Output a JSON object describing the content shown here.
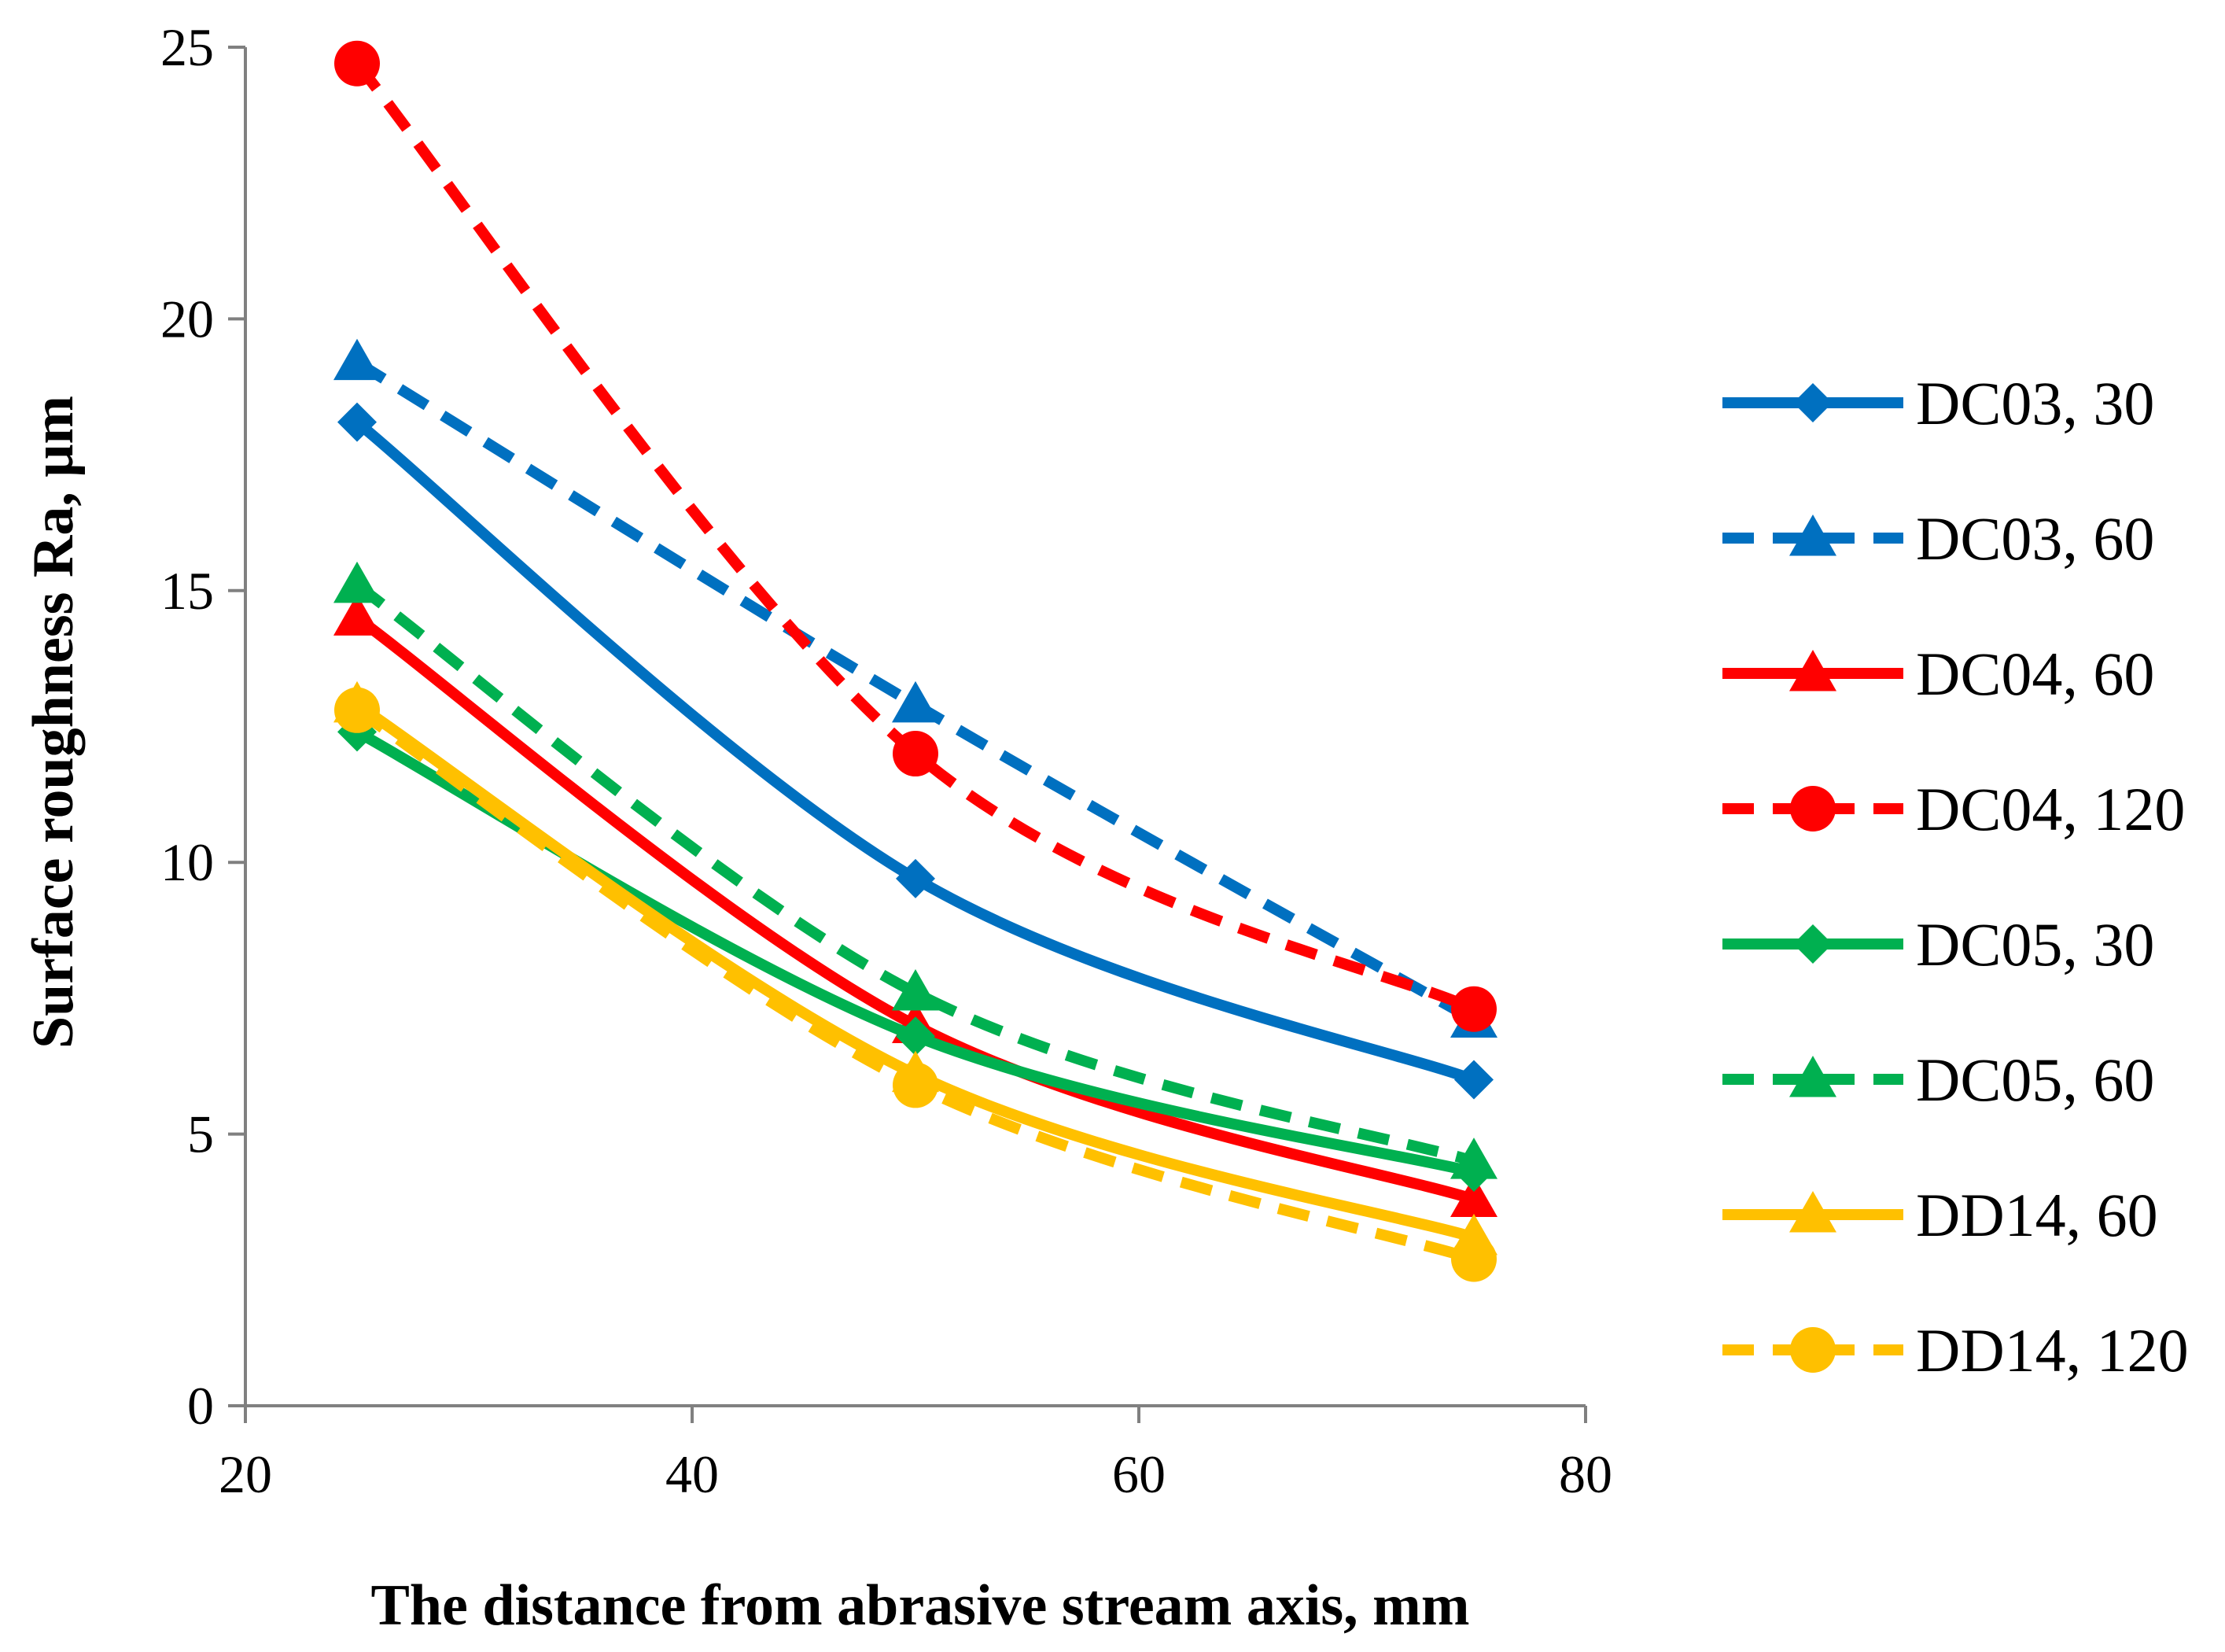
{
  "chart_data": {
    "type": "line",
    "title": "",
    "xlabel": "The distance from abrasive stream axis, mm",
    "ylabel": "Surface roughness Ra, μm",
    "xlim": [
      20,
      80
    ],
    "ylim": [
      0,
      25
    ],
    "x_ticks": [
      20,
      40,
      60,
      80
    ],
    "y_ticks": [
      0,
      5,
      10,
      15,
      20,
      25
    ],
    "grid": false,
    "legend_position": "right",
    "x": [
      25,
      50,
      75
    ],
    "series": [
      {
        "name": "DC03, 30",
        "values": [
          18.1,
          9.7,
          6.0
        ],
        "color": "#0070C0",
        "dash": "solid",
        "marker": "diamond"
      },
      {
        "name": "DC03, 60",
        "values": [
          19.2,
          12.9,
          7.1
        ],
        "color": "#0070C0",
        "dash": "dashed",
        "marker": "triangle"
      },
      {
        "name": "DC04, 60",
        "values": [
          14.5,
          7.0,
          3.8
        ],
        "color": "#FF0000",
        "dash": "solid",
        "marker": "triangle"
      },
      {
        "name": "DC04, 120",
        "values": [
          24.7,
          12.0,
          7.3
        ],
        "color": "#FF0000",
        "dash": "dashed",
        "marker": "circle"
      },
      {
        "name": "DC05, 30",
        "values": [
          12.4,
          6.8,
          4.3
        ],
        "color": "#00B050",
        "dash": "solid",
        "marker": "diamond"
      },
      {
        "name": "DC05, 60",
        "values": [
          15.1,
          7.6,
          4.5
        ],
        "color": "#00B050",
        "dash": "dashed",
        "marker": "triangle"
      },
      {
        "name": "DD14, 60",
        "values": [
          12.9,
          6.1,
          3.1
        ],
        "color": "#FFC000",
        "dash": "solid",
        "marker": "triangle"
      },
      {
        "name": "DD14, 120",
        "values": [
          12.8,
          5.9,
          2.7
        ],
        "color": "#FFC000",
        "dash": "dashed",
        "marker": "circle"
      }
    ]
  }
}
